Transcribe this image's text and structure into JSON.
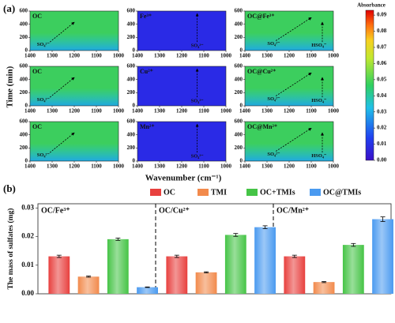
{
  "chart_data": [
    {
      "type": "heatmap",
      "panel_label": "(a)",
      "ylabel": "Time (min)",
      "xlabel": "Wavenumber (cm⁻¹)",
      "colorbar_title": "Absorbance",
      "xlim": [
        1400,
        1000
      ],
      "xticks": [
        1400,
        1300,
        1200,
        1100,
        1000
      ],
      "ylim": [
        0,
        600
      ],
      "yticks": [
        0,
        200,
        400,
        600
      ],
      "clim": [
        0,
        0.093
      ],
      "cticks": [
        {
          "value": 0,
          "label": "0.00"
        },
        {
          "value": 0.01,
          "label": "0.01"
        },
        {
          "value": 0.02,
          "label": "0.02"
        },
        {
          "value": 0.03,
          "label": "0.03"
        },
        {
          "value": 0.04,
          "label": "0.04"
        },
        {
          "value": 0.05,
          "label": "0.05"
        },
        {
          "value": 0.06,
          "label": "0.06"
        },
        {
          "value": 0.07,
          "label": "0.07"
        },
        {
          "value": 0.08,
          "label": "0.08"
        },
        {
          "value": 0.09,
          "label": "0.09"
        }
      ],
      "panels": [
        {
          "label": "OC",
          "annotations": [
            "SO₄²⁻"
          ]
        },
        {
          "label": "Fe³⁺",
          "annotations": [
            "SO₄²⁻"
          ]
        },
        {
          "label": "OC@Fe³⁺",
          "annotations": [
            "SO₄²⁻",
            "HSO₄⁻"
          ]
        },
        {
          "label": "OC",
          "annotations": [
            "SO₄²⁻"
          ]
        },
        {
          "label": "Cu²⁺",
          "annotations": [
            "SO₄²⁻"
          ]
        },
        {
          "label": "OC@Cu²⁺",
          "annotations": [
            "SO₄²⁻",
            "HSO₄⁻"
          ]
        },
        {
          "label": "OC",
          "annotations": [
            "SO₄²⁻"
          ]
        },
        {
          "label": "Mn²⁺",
          "annotations": [
            "SO₄²⁻"
          ]
        },
        {
          "label": "OC@Mn²⁺",
          "annotations": [
            "SO₄²⁻",
            "HSO₄⁻"
          ]
        }
      ]
    },
    {
      "type": "bar",
      "panel_label": "(b)",
      "ylabel": "The mass of sulfates (mg)",
      "categories": [
        "OC/Fe³⁺",
        "OC/Cu²⁺",
        "OC/Mn²⁺"
      ],
      "series": [
        {
          "name": "OC",
          "color": "#e8403e",
          "values": [
            0.0131,
            0.0131,
            0.0131
          ],
          "errors": [
            0.0004,
            0.0004,
            0.0004
          ]
        },
        {
          "name": "TMI",
          "color": "#f28a4c",
          "values": [
            0.006,
            0.0075,
            0.0041
          ],
          "errors": [
            0.0002,
            0.0002,
            0.0002
          ]
        },
        {
          "name": "OC+TMIs",
          "color": "#45c446",
          "values": [
            0.0191,
            0.0206,
            0.0171
          ],
          "errors": [
            0.0004,
            0.0005,
            0.0005
          ]
        },
        {
          "name": "OC@TMIs",
          "color": "#4a9af0",
          "values": [
            0.0023,
            0.0233,
            0.0261
          ],
          "errors": [
            0.0001,
            0.0005,
            0.0008
          ]
        }
      ],
      "ylim": [
        0,
        0.0315
      ],
      "yticks": [
        {
          "value": 0,
          "label": "0.00"
        },
        {
          "value": 0.01,
          "label": "0.01"
        },
        {
          "value": 0.02,
          "label": "0.02"
        },
        {
          "value": 0.03,
          "label": "0.03"
        }
      ]
    }
  ]
}
